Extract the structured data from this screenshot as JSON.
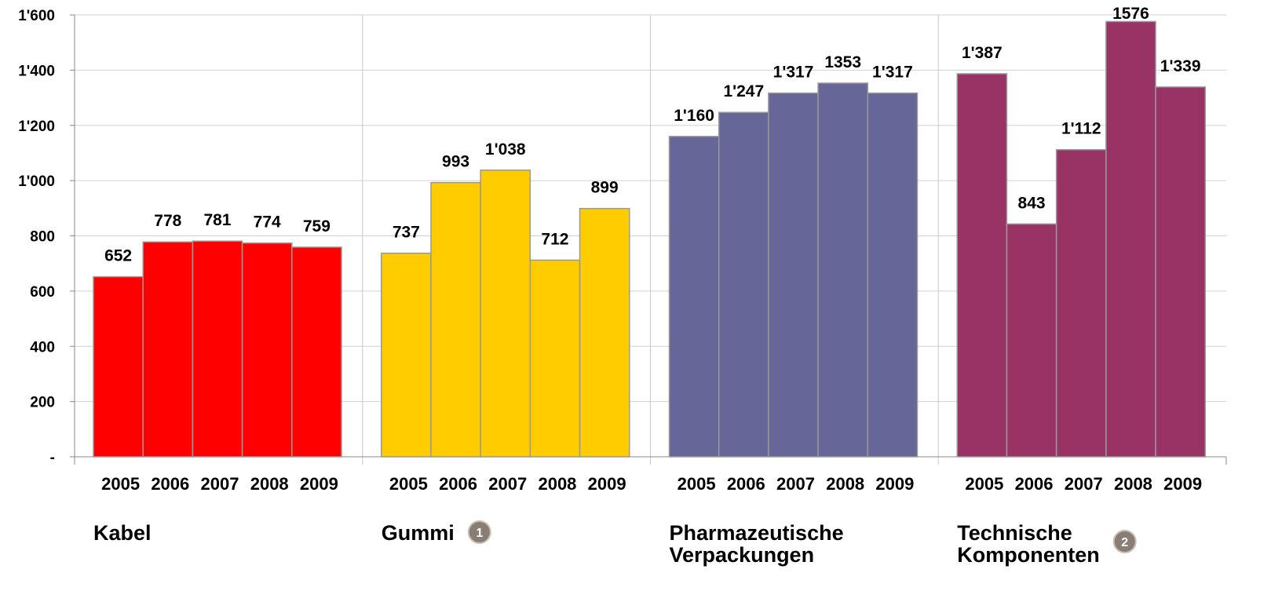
{
  "chart_data": {
    "type": "bar",
    "ylim": [
      0,
      1600
    ],
    "yticks": [
      {
        "value": 0,
        "label": "-"
      },
      200,
      400,
      600,
      800,
      {
        "value": 1000,
        "label": "1'000"
      },
      {
        "value": 1200,
        "label": "1'200"
      },
      {
        "value": 1400,
        "label": "1'400"
      },
      {
        "value": 1600,
        "label": "1'600"
      }
    ],
    "grid": true,
    "groups": [
      {
        "name": [
          "Kabel"
        ],
        "color": "#ff0000",
        "categories": [
          "2005",
          "2006",
          "2007",
          "2008",
          "2009"
        ],
        "values": [
          652,
          778,
          781,
          774,
          759
        ],
        "value_labels": [
          "652",
          "778",
          "781",
          "774",
          "759"
        ]
      },
      {
        "name": [
          "Gummi"
        ],
        "badge": "1",
        "color": "#ffcc00",
        "categories": [
          "2005",
          "2006",
          "2007",
          "2008",
          "2009"
        ],
        "values": [
          737,
          993,
          1038,
          712,
          899
        ],
        "value_labels": [
          "737",
          "993",
          "1'038",
          "712",
          "899"
        ]
      },
      {
        "name": [
          "Pharmazeutische",
          "Verpackungen"
        ],
        "color": "#666699",
        "categories": [
          "2005",
          "2006",
          "2007",
          "2008",
          "2009"
        ],
        "values": [
          1160,
          1247,
          1317,
          1353,
          1317
        ],
        "value_labels": [
          "1'160",
          "1'247",
          "1'317",
          "1353",
          "1'317"
        ]
      },
      {
        "name": [
          "Technische",
          "Komponenten"
        ],
        "badge": "2",
        "color": "#993366",
        "categories": [
          "2005",
          "2006",
          "2007",
          "2008",
          "2009"
        ],
        "values": [
          1387,
          843,
          1112,
          1576,
          1339
        ],
        "value_labels": [
          "1'387",
          "843",
          "1'112",
          "1576",
          "1'339"
        ]
      }
    ]
  }
}
